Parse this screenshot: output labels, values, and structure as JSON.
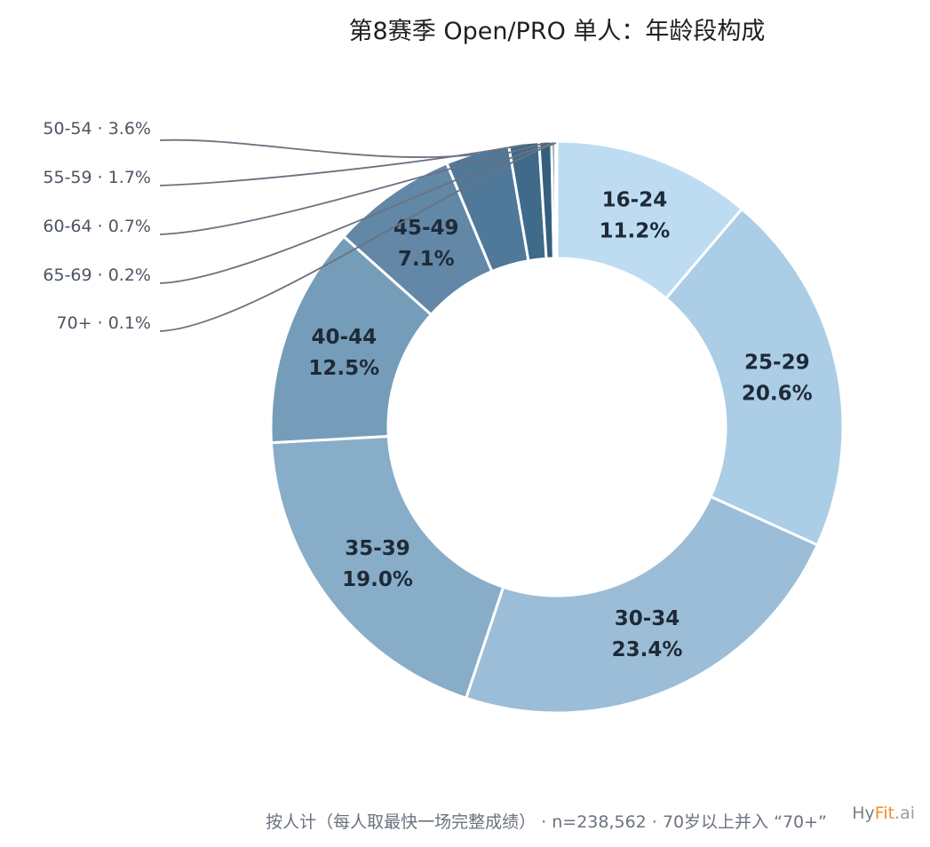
{
  "chart_data": {
    "type": "pie",
    "title": "第8赛季 Open/PRO 单人：年龄段构成",
    "footnote": "按人计（每人取最快一场完整成绩） · n=238,562 · 70岁以上并入 “70+”",
    "categories": [
      "16-24",
      "25-29",
      "30-34",
      "35-39",
      "40-44",
      "45-49",
      "50-54",
      "55-59",
      "60-64",
      "65-69",
      "70+"
    ],
    "values": [
      11.2,
      20.6,
      23.4,
      19.0,
      12.5,
      7.1,
      3.6,
      1.7,
      0.7,
      0.2,
      0.1
    ],
    "value_labels": [
      "11.2%",
      "20.6%",
      "23.4%",
      "19.0%",
      "12.5%",
      "7.1%",
      "3.6%",
      "1.7%",
      "0.7%",
      "0.2%",
      "0.1%"
    ],
    "outside_labels": [
      "50-54 · 3.6%",
      "55-59 · 1.7%",
      "60-64 · 0.7%",
      "65-69 · 0.2%",
      "70+ · 0.1%"
    ],
    "colors": [
      "#bddcf2",
      "#abcde6",
      "#9bbdd7",
      "#88adc8",
      "#759db9",
      "#6287a7",
      "#4f7899",
      "#3f6a8a",
      "#355f7e",
      "#2d5673",
      "#244c68"
    ],
    "donut": true,
    "start_angle_deg": 0,
    "direction": "clockwise"
  },
  "branding": {
    "part1": "Hy",
    "part2": "Fit",
    "part3": ".ai"
  }
}
